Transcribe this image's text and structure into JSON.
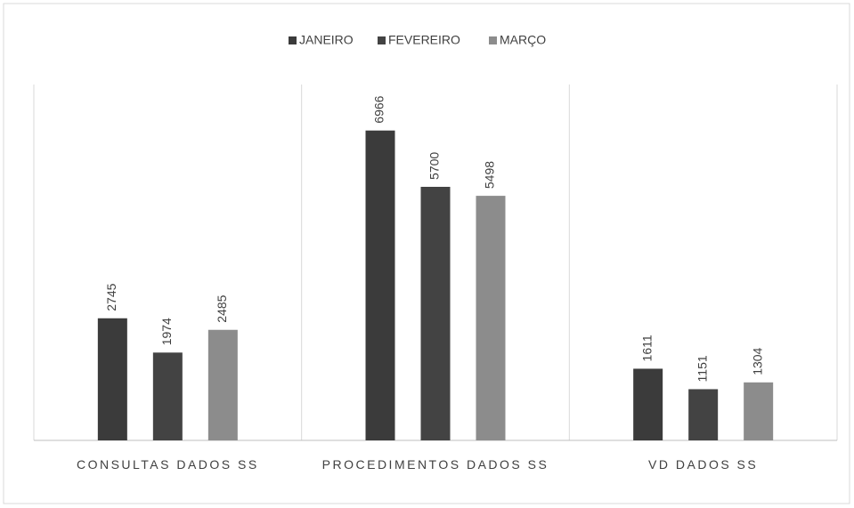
{
  "chart_data": {
    "type": "bar",
    "categories": [
      "CONSULTAS DADOS SS",
      "PROCEDIMENTOS DADOS SS",
      "VD DADOS SS"
    ],
    "series": [
      {
        "name": "JANEIRO",
        "color": "#3b3b3b",
        "values": [
          2745,
          6966,
          1611
        ]
      },
      {
        "name": "FEVEREIRO",
        "color": "#434343",
        "values": [
          1974,
          5700,
          1151
        ]
      },
      {
        "name": "MARÇO",
        "color": "#8c8c8c",
        "values": [
          2485,
          5498,
          1304
        ]
      }
    ],
    "ylim": [
      0,
      8000
    ],
    "legend": "top"
  }
}
